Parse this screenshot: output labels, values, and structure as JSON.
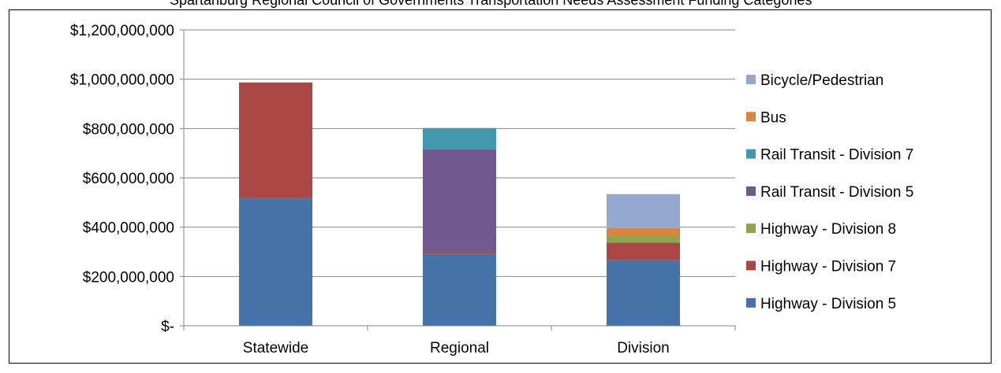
{
  "top_text": "Spartanburg Regional Council of Governments Transportation Needs Assessment Funding Categories",
  "chart_data": {
    "type": "bar",
    "stacked": true,
    "categories": [
      "Statewide",
      "Regional",
      "Division"
    ],
    "ylim": [
      0,
      1200000000
    ],
    "yticks": [
      0,
      200000000,
      400000000,
      600000000,
      800000000,
      1000000000,
      1200000000
    ],
    "ytick_labels": [
      "$-",
      "$200,000,000",
      "$400,000,000",
      "$600,000,000",
      "$800,000,000",
      "$1,000,000,000",
      "$1,200,000,000"
    ],
    "grid": true,
    "legend_position": "right",
    "series": [
      {
        "name": "Highway - Division 5",
        "color": "#4572A7",
        "values": [
          520000000,
          293000000,
          267000000
        ]
      },
      {
        "name": "Highway - Division 7",
        "color": "#AA4643",
        "values": [
          467000000,
          10000000,
          70000000
        ]
      },
      {
        "name": "Highway - Division 8",
        "color": "#89A54E",
        "values": [
          0,
          0,
          27000000
        ]
      },
      {
        "name": "Rail Transit - Division 5",
        "color": "#71588F",
        "values": [
          0,
          412000000,
          0
        ]
      },
      {
        "name": "Rail Transit - Division 7",
        "color": "#4198AF",
        "values": [
          0,
          87000000,
          0
        ]
      },
      {
        "name": "Bus",
        "color": "#DB843D",
        "values": [
          0,
          0,
          32000000
        ]
      },
      {
        "name": "Bicycle/Pedestrian",
        "color": "#93A9CF",
        "values": [
          0,
          0,
          138000000
        ]
      }
    ]
  }
}
